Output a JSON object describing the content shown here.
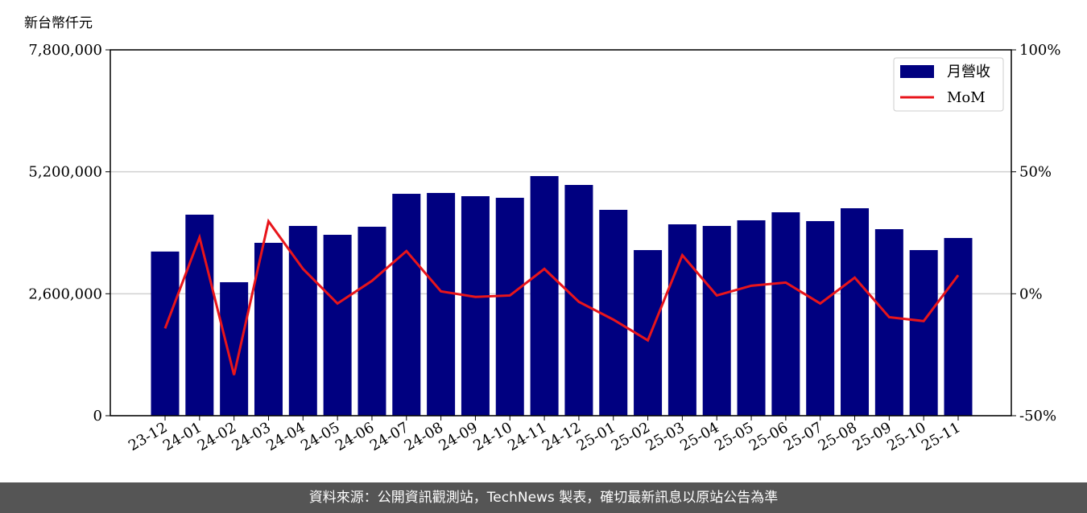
{
  "chart_data": {
    "type": "bar_line",
    "y_label": "新台幣仟元",
    "categories": [
      "23-12",
      "24-01",
      "24-02",
      "24-03",
      "24-04",
      "24-05",
      "24-06",
      "24-07",
      "24-08",
      "24-09",
      "24-10",
      "24-11",
      "24-12",
      "25-01",
      "25-02",
      "25-03",
      "25-04",
      "25-05",
      "25-06",
      "25-07",
      "25-08",
      "25-09",
      "25-10",
      "25-11"
    ],
    "series": [
      {
        "name": "月營收",
        "type": "bar",
        "color": "#000080",
        "values": [
          3500000,
          4286000,
          2846000,
          3686000,
          4046000,
          3857000,
          4029000,
          4731000,
          4749000,
          4680000,
          4646000,
          5109000,
          4920000,
          4389000,
          3531000,
          4080000,
          4046000,
          4166000,
          4337000,
          4149000,
          4423000,
          3977000,
          3531000,
          3789000
        ]
      },
      {
        "name": "MoM",
        "type": "line",
        "color": "#e8151b",
        "axis": "y2",
        "values": [
          -14.2,
          23.1,
          -33.3,
          29.7,
          10.2,
          -4.0,
          5.3,
          17.5,
          1.0,
          -1.3,
          -0.7,
          10.2,
          -3.3,
          -10.6,
          -19.1,
          15.8,
          -0.7,
          3.3,
          4.6,
          -4.0,
          6.6,
          -9.6,
          -11.2,
          7.6
        ]
      }
    ],
    "ylim": [
      0,
      7800000
    ],
    "yticks": [
      0,
      {
        "value": 2600000,
        "label": "2,600,000"
      },
      {
        "value": 5200000,
        "label": "5,200,000"
      },
      {
        "value": 7800000,
        "label": "7,800,000"
      }
    ],
    "y2lim": [
      -50,
      100
    ],
    "y2ticks": [
      {
        "value": -50,
        "label": "-50%"
      },
      {
        "value": 0,
        "label": "0%"
      },
      {
        "value": 50,
        "label": "50%"
      },
      {
        "value": 100,
        "label": "100%"
      }
    ],
    "grid": true,
    "legend": "upper right"
  },
  "footer": "資料來源：公開資訊觀測站，TechNews 製表，確切最新訊息以原站公告為準"
}
